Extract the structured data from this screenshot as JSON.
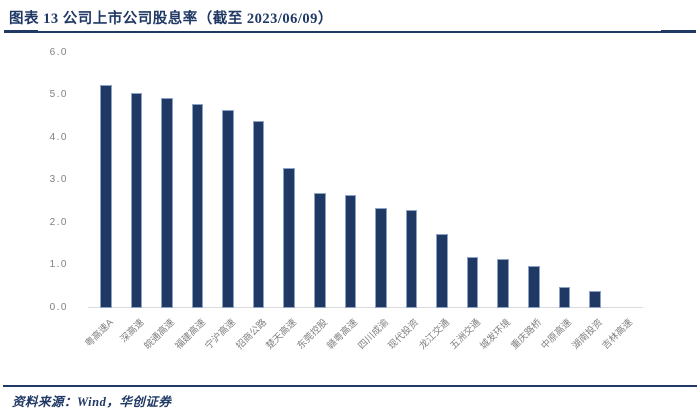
{
  "header": {
    "title": "图表 13 公司上市公司股息率（截至 2023/06/09）"
  },
  "footer": {
    "source": "资料来源：Wind，华创证券"
  },
  "colors": {
    "navy": "#1F3864",
    "bar_fill": "#1F3864",
    "bar_border": "#8CA3C3",
    "axis_text_gray": "#7F7F7F",
    "axis_line_gray": "#DCDCDC",
    "background": "#FFFFFF"
  },
  "chart_data": {
    "type": "bar",
    "title": "公司上市公司股息率（截至 2023/06/09）",
    "xlabel": "",
    "ylabel": "",
    "ylim": [
      0,
      6
    ],
    "y_ticks": [
      "0.0",
      "1.0",
      "2.0",
      "3.0",
      "4.0",
      "5.0",
      "6.0"
    ],
    "grid": false,
    "legend_position": "none",
    "categories": [
      "粤高速A",
      "深高速",
      "皖通高速",
      "福建高速",
      "宁沪高速",
      "招商公路",
      "楚天高速",
      "东莞控股",
      "赣粤高速",
      "四川成渝",
      "现代投资",
      "龙江交通",
      "五洲交通",
      "城发环境",
      "重庆路桥",
      "中原高速",
      "湖南投资",
      "吉林高速"
    ],
    "values": [
      5.25,
      5.05,
      4.95,
      4.8,
      4.65,
      4.4,
      3.3,
      2.7,
      2.65,
      2.35,
      2.3,
      1.75,
      1.2,
      1.15,
      1.0,
      0.5,
      0.4,
      0
    ]
  }
}
